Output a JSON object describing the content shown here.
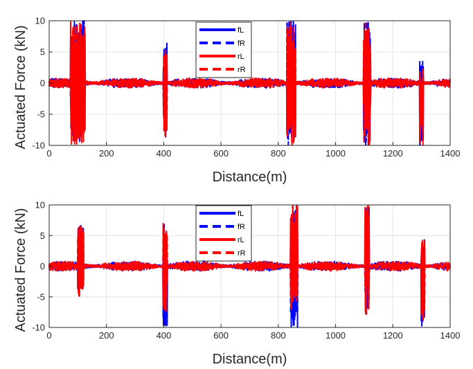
{
  "colors": {
    "blue": "#0000ff",
    "red": "#ff0000",
    "grid": "#e6e6e6",
    "axis": "#262626"
  },
  "chart_data": [
    {
      "type": "line",
      "xlabel": "Distance(m)",
      "ylabel": "Actuated Force (kN)",
      "xlim": [
        0,
        1400
      ],
      "ylim": [
        -10,
        10
      ],
      "xticks": [
        "0",
        "200",
        "400",
        "600",
        "800",
        "1000",
        "1200",
        "1400"
      ],
      "yticks": [
        "-10",
        "-5",
        "0",
        "5",
        "10"
      ],
      "grid": true,
      "legend_position": "top-center",
      "series": [
        {
          "name": "fL",
          "color": "#0000ff",
          "style": "solid"
        },
        {
          "name": "fR",
          "color": "#0000ff",
          "style": "dashed"
        },
        {
          "name": "rL",
          "color": "#ff0000",
          "style": "solid"
        },
        {
          "name": "rR",
          "color": "#ff0000",
          "style": "dashed"
        }
      ],
      "baseline_noise_amplitude_kN": 0.8,
      "events": [
        {
          "x": 100,
          "width": 50,
          "blue_min": -10,
          "blue_max": 10,
          "red_min": -10,
          "red_max": 10
        },
        {
          "x": 405,
          "width": 12,
          "blue_min": -9,
          "blue_max": 6.5,
          "red_min": -9,
          "red_max": 5.5
        },
        {
          "x": 845,
          "width": 30,
          "blue_min": -10,
          "blue_max": 10,
          "red_min": -10,
          "red_max": 10
        },
        {
          "x": 1110,
          "width": 25,
          "blue_min": -10,
          "blue_max": 10,
          "red_min": -10,
          "red_max": 10
        },
        {
          "x": 1300,
          "width": 12,
          "blue_min": -10,
          "blue_max": 3.5,
          "red_min": -10,
          "red_max": 3
        }
      ]
    },
    {
      "type": "line",
      "xlabel": "Distance(m)",
      "ylabel": "Actuated Force (kN)",
      "xlim": [
        0,
        1400
      ],
      "ylim": [
        -10,
        10
      ],
      "xticks": [
        "0",
        "200",
        "400",
        "600",
        "800",
        "1000",
        "1200",
        "1400"
      ],
      "yticks": [
        "-10",
        "-5",
        "0",
        "5",
        "10"
      ],
      "grid": true,
      "legend_position": "top-center",
      "series": [
        {
          "name": "fL",
          "color": "#0000ff",
          "style": "solid"
        },
        {
          "name": "fR",
          "color": "#0000ff",
          "style": "dashed"
        },
        {
          "name": "rL",
          "color": "#ff0000",
          "style": "solid"
        },
        {
          "name": "rR",
          "color": "#ff0000",
          "style": "dashed"
        }
      ],
      "baseline_noise_amplitude_kN": 0.8,
      "events": [
        {
          "x": 110,
          "width": 20,
          "blue_min": -4,
          "blue_max": 7,
          "red_min": -5,
          "red_max": 7
        },
        {
          "x": 405,
          "width": 15,
          "blue_min": -10,
          "blue_max": 7,
          "red_min": -7.5,
          "red_max": 7
        },
        {
          "x": 855,
          "width": 25,
          "blue_min": -10,
          "blue_max": 10,
          "red_min": -7,
          "red_max": 10
        },
        {
          "x": 1110,
          "width": 15,
          "blue_min": -8,
          "blue_max": 10,
          "red_min": -8,
          "red_max": 10
        },
        {
          "x": 1305,
          "width": 12,
          "blue_min": -10,
          "blue_max": 4.5,
          "red_min": -9,
          "red_max": 4.5
        }
      ]
    }
  ]
}
